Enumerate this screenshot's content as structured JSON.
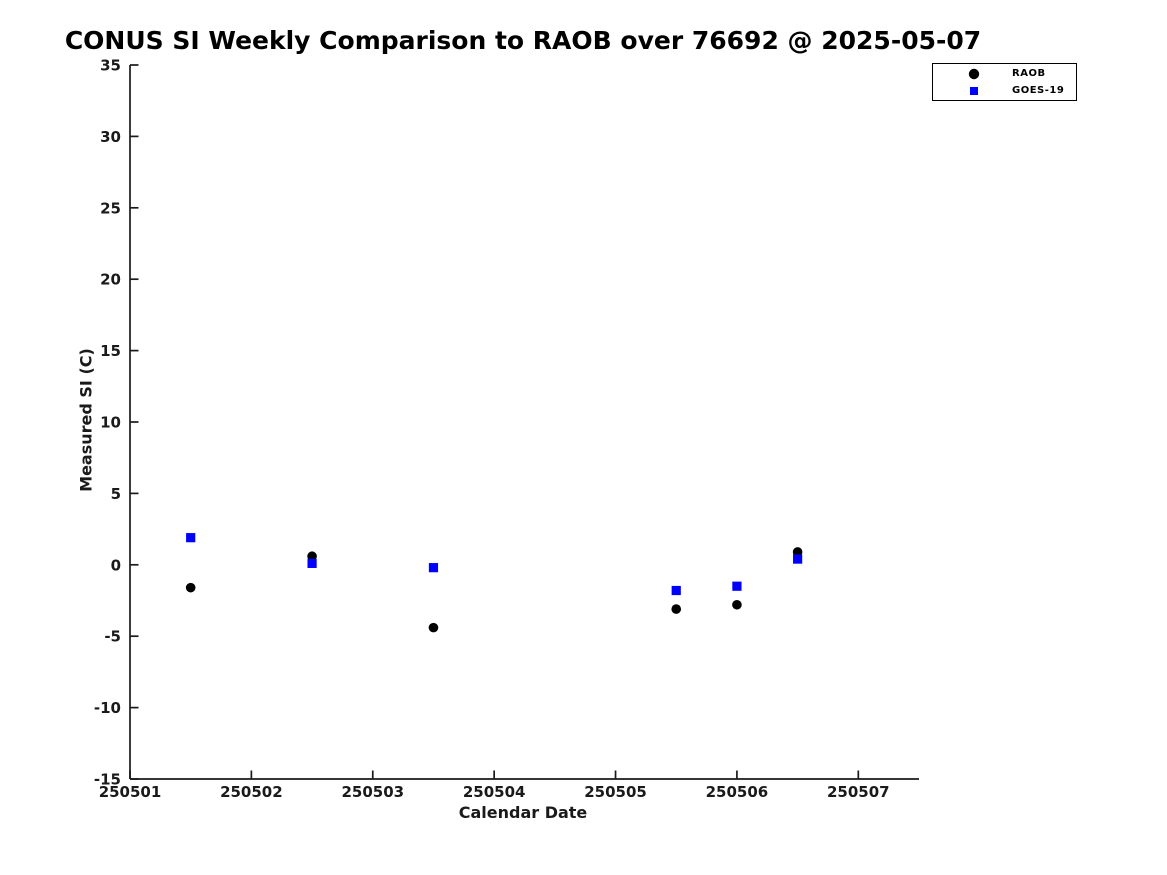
{
  "chart_data": {
    "type": "scatter",
    "title": "CONUS SI Weekly Comparison to RAOB over 76692 @ 2025-05-07",
    "xlabel": "Calendar Date",
    "ylabel": "Measured SI (C)",
    "xlim": [
      250501,
      250507.5
    ],
    "ylim": [
      -15,
      35
    ],
    "xticks": [
      250501,
      250502,
      250503,
      250504,
      250505,
      250506,
      250507
    ],
    "yticks": [
      -15,
      -10,
      -5,
      0,
      5,
      10,
      15,
      20,
      25,
      30,
      35
    ],
    "grid": false,
    "legend_position": "top-right",
    "series": [
      {
        "name": "RAOB",
        "marker": "circle",
        "color": "#000000",
        "points": [
          [
            250501.5,
            -1.6
          ],
          [
            250502.5,
            0.6
          ],
          [
            250503.5,
            -4.4
          ],
          [
            250505.5,
            -3.1
          ],
          [
            250506.0,
            -2.8
          ],
          [
            250506.5,
            0.9
          ]
        ]
      },
      {
        "name": "GOES-19",
        "marker": "square",
        "color": "#0000ff",
        "points": [
          [
            250501.5,
            1.9
          ],
          [
            250502.5,
            0.1
          ],
          [
            250503.5,
            -0.2
          ],
          [
            250505.5,
            -1.8
          ],
          [
            250506.0,
            -1.5
          ],
          [
            250506.5,
            0.4
          ]
        ]
      }
    ]
  },
  "colors": {
    "axis": "#1a1a1a",
    "title": "#000000",
    "background": "#ffffff"
  }
}
